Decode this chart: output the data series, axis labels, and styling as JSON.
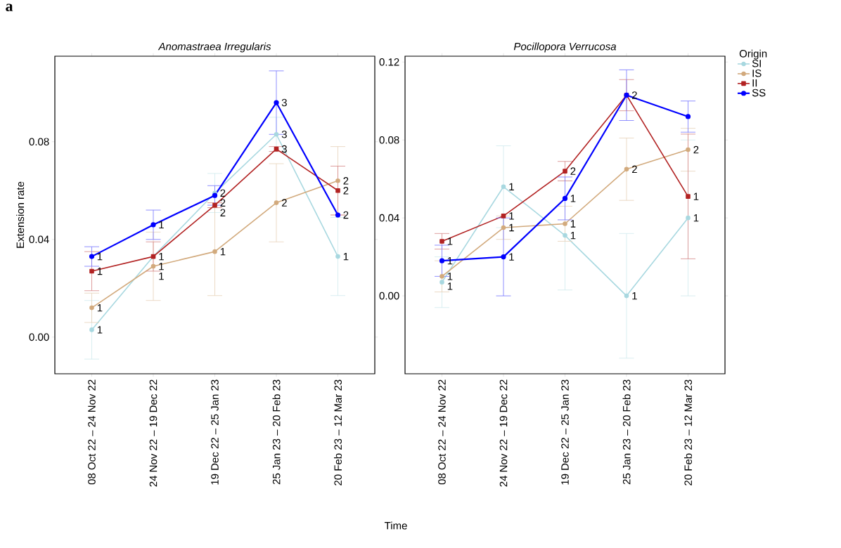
{
  "chart_data": [
    {
      "type": "line",
      "title": "Anomastraea Irregularis",
      "ylabel": "Extension rate",
      "xlabel": "Time",
      "categories": [
        "08 Oct 22 – 24 Nov 22",
        "24 Nov 22 – 19 Dec 22",
        "19 Dec 22 – 25 Jan 23",
        "25 Jan 23 – 20 Feb 23",
        "20 Feb 23 – 12 Mar 23"
      ],
      "ylim": [
        -0.015,
        0.115
      ],
      "yticks": [
        {
          "value": 0,
          "label": "0.00"
        },
        {
          "value": 0.04,
          "label": "0.04"
        },
        {
          "value": 0.08,
          "label": "0.08"
        }
      ],
      "series": [
        {
          "color": "#a8d8e0",
          "marker": "circle",
          "values": [
            0.003,
            0.033,
            0.059,
            0.083,
            0.033
          ],
          "errors": [
            0.012,
            null,
            0.008,
            0.007,
            0.016
          ]
        },
        {
          "color": "#d2aa7d",
          "marker": "circle",
          "values": [
            0.012,
            0.029,
            0.035,
            0.055,
            0.064
          ],
          "errors": [
            0.006,
            0.014,
            0.018,
            0.016,
            0.014
          ]
        },
        {
          "color": "#b22222",
          "marker": "square",
          "values": [
            0.027,
            0.033,
            0.054,
            0.077,
            0.06
          ],
          "errors": [
            0.008,
            0.006,
            0.001,
            0.001,
            0.01
          ]
        },
        {
          "color": "#0000ff",
          "marker": "circle",
          "values": [
            0.033,
            0.046,
            0.058,
            0.096,
            0.05
          ],
          "errors": [
            0.004,
            0.006,
            0.004,
            0.013,
            null
          ]
        }
      ],
      "annotations": [
        "a",
        {
          "text": "1",
          "x": "08 Oct 22 – 24 Nov 22",
          "y": 0.003
        },
        {
          "text": "1",
          "x": "24 Nov 22 – 19 Dec 22",
          "y": 0.033
        },
        {
          "text": "2",
          "x": "19 Dec 22 – 25 Jan 23",
          "y": 0.059
        },
        {
          "text": "3",
          "x": "25 Jan 23 – 20 Feb 23",
          "y": 0.083
        },
        {
          "text": "1",
          "x": "20 Feb 23 – 12 Mar 23",
          "y": 0.033
        },
        {
          "text": "1",
          "x": "08 Oct 22 – 24 Nov 22",
          "y": 0.012
        },
        {
          "text": "1",
          "x": "24 Nov 22 – 19 Dec 22",
          "y": 0.029
        },
        {
          "text": "1",
          "x": "19 Dec 22 – 25 Jan 23",
          "y": 0.035
        },
        {
          "text": "2",
          "x": "25 Jan 23 – 20 Feb 23",
          "y": 0.055
        },
        {
          "text": "2",
          "x": "20 Feb 23 – 12 Mar 23",
          "y": 0.064
        },
        {
          "text": "1",
          "x": "08 Oct 22 – 24 Nov 22",
          "y": 0.027
        },
        {
          "text": "1",
          "x": "24 Nov 22 – 19 Dec 22",
          "y": 0.033
        },
        {
          "text": "2",
          "x": "19 Dec 22 – 25 Jan 23",
          "y": 0.054
        },
        {
          "text": "3",
          "x": "25 Jan 23 – 20 Feb 23",
          "y": 0.077
        },
        {
          "text": "2",
          "x": "20 Feb 23 – 12 Mar 23",
          "y": 0.06
        },
        {
          "text": "1",
          "x": "08 Oct 22 – 24 Nov 22",
          "y": 0.033
        },
        {
          "text": "1",
          "x": "24 Nov 22 – 19 Dec 22",
          "y": 0.046
        },
        {
          "text": "2",
          "x": "19 Dec 22 – 25 Jan 23",
          "y": 0.058
        },
        {
          "text": "3",
          "x": "25 Jan 23 – 20 Feb 23",
          "y": 0.096
        },
        {
          "text": "2",
          "x": "20 Feb 23 – 12 Mar 23",
          "y": 0.05
        }
      ]
    },
    {
      "type": "line",
      "title": "Pocillopora Verrucosa",
      "legend": "right",
      "legend_title": "Origin",
      "categories": [
        "08 Oct 22 – 24 Nov 22",
        "24 Nov 22 – 19 Dec 22",
        "19 Dec 22 – 25 Jan 23",
        "25 Jan 23 – 20 Feb 23",
        "20 Feb 23 – 12 Mar 23"
      ],
      "ylim": [
        -0.04,
        0.123
      ],
      "yticks": [
        {
          "value": 0,
          "label": "0.00"
        },
        {
          "value": 0.04,
          "label": "0.04"
        },
        {
          "value": 0.08,
          "label": "0.08"
        },
        {
          "value": 0.12,
          "label": "0.12"
        }
      ],
      "series": [
        {
          "name": "SI",
          "color": "#a8d8e0",
          "marker": "circle",
          "values": [
            0.007,
            0.056,
            0.031,
            0.0,
            0.04
          ],
          "errors": [
            0.013,
            0.021,
            0.028,
            0.032,
            0.04
          ]
        },
        {
          "name": "IS",
          "color": "#d2aa7d",
          "marker": "circle",
          "values": [
            0.01,
            0.035,
            0.037,
            0.065,
            0.075
          ],
          "errors": [
            0.008,
            0.006,
            0.009,
            0.016,
            0.011
          ]
        },
        {
          "name": "II",
          "color": "#b22222",
          "marker": "square",
          "values": [
            0.028,
            0.041,
            0.064,
            0.103,
            0.051
          ],
          "errors": [
            0.004,
            null,
            0.005,
            0.008,
            0.032
          ]
        },
        {
          "name": "SS",
          "color": "#0000ff",
          "marker": "circle",
          "values": [
            0.018,
            0.02,
            0.05,
            0.103,
            0.092
          ],
          "errors": [
            0.008,
            0.02,
            0.011,
            0.013,
            0.008
          ]
        }
      ],
      "annotations": [
        {
          "text": "1",
          "x": "08 Oct 22 – 24 Nov 22",
          "y": 0.007
        },
        {
          "text": "1",
          "x": "24 Nov 22 – 19 Dec 22",
          "y": 0.056
        },
        {
          "text": "1",
          "x": "19 Dec 22 – 25 Jan 23",
          "y": 0.031
        },
        {
          "text": "1",
          "x": "25 Jan 23 – 20 Feb 23",
          "y": 0.0
        },
        {
          "text": "1",
          "x": "20 Feb 23 – 12 Mar 23",
          "y": 0.04
        },
        {
          "text": "1",
          "x": "08 Oct 22 – 24 Nov 22",
          "y": 0.01
        },
        {
          "text": "1",
          "x": "24 Nov 22 – 19 Dec 22",
          "y": 0.035
        },
        {
          "text": "1",
          "x": "19 Dec 22 – 25 Jan 23",
          "y": 0.037
        },
        {
          "text": "2",
          "x": "25 Jan 23 – 20 Feb 23",
          "y": 0.065
        },
        {
          "text": "2",
          "x": "20 Feb 23 – 12 Mar 23",
          "y": 0.075
        },
        {
          "text": "1",
          "x": "08 Oct 22 – 24 Nov 22",
          "y": 0.028
        },
        {
          "text": "1",
          "x": "24 Nov 22 – 19 Dec 22",
          "y": 0.041
        },
        {
          "text": "2",
          "x": "19 Dec 22 – 25 Jan 23",
          "y": 0.064
        },
        {
          "text": "1",
          "x": "20 Feb 23 – 12 Mar 23",
          "y": 0.051
        },
        {
          "text": "1",
          "x": "08 Oct 22 – 24 Nov 22",
          "y": 0.018
        },
        {
          "text": "1",
          "x": "24 Nov 22 – 19 Dec 22",
          "y": 0.02
        },
        {
          "text": "1",
          "x": "19 Dec 22 – 25 Jan 23",
          "y": 0.05
        },
        {
          "text": "2",
          "x": "25 Jan 23 – 20 Feb 23",
          "y": 0.103
        }
      ]
    }
  ]
}
